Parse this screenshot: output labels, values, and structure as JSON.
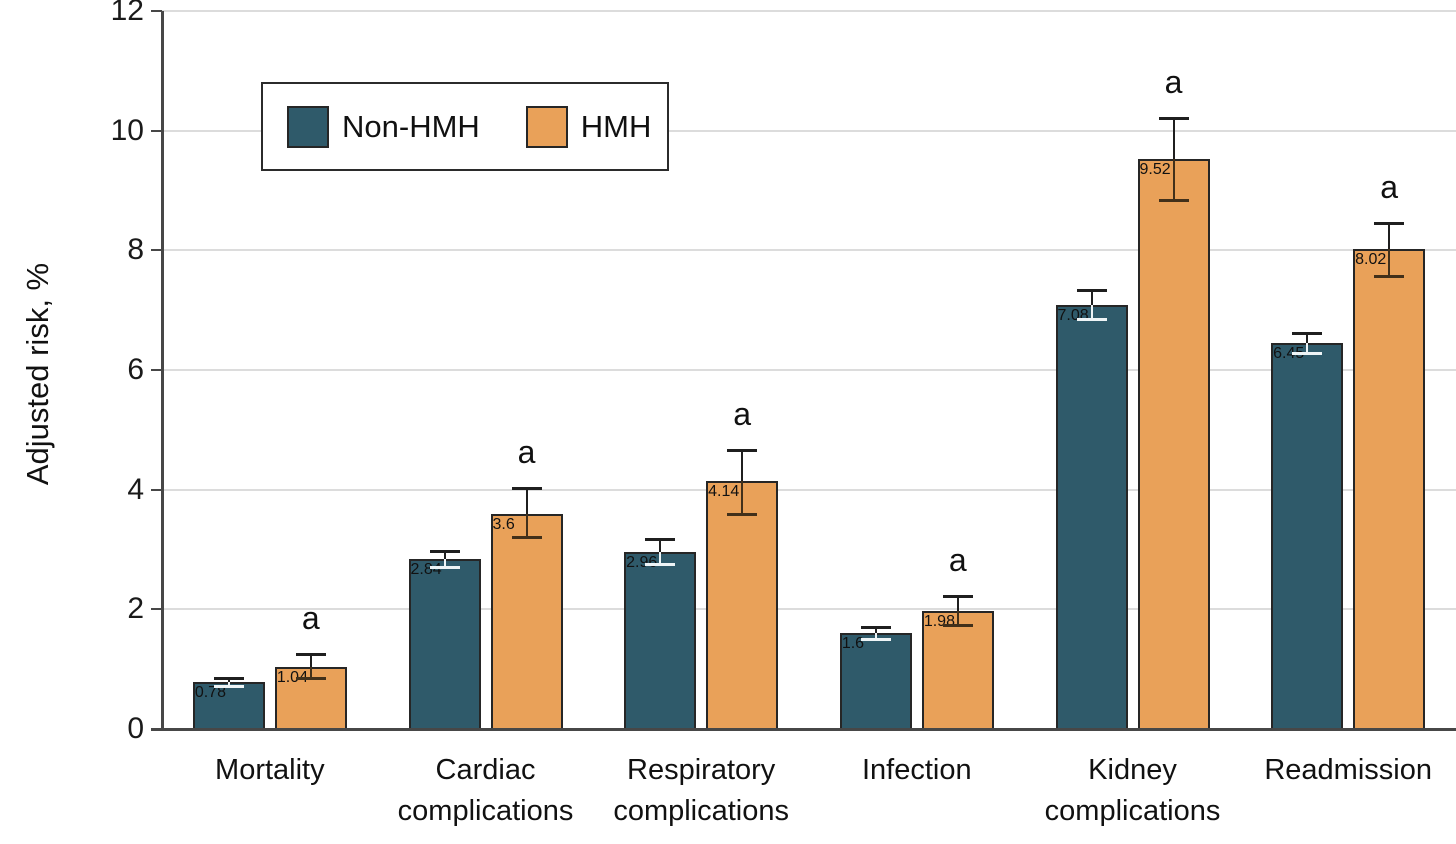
{
  "figure": {
    "background": "#ffffff",
    "axis_color": "#474747",
    "grid_color": "#dcdcdc",
    "bar_outline_color": "#262626",
    "error_bar_color": "#1f1f1f",
    "error_bar_light_color": "#eef4f6",
    "significance_marker": "a"
  },
  "legend": {
    "position": "top-left",
    "items": [
      {
        "label": "Non-HMH",
        "color": "#2f5a6a"
      },
      {
        "label": "HMH",
        "color": "#e9a159"
      }
    ]
  },
  "chart_data": {
    "type": "bar",
    "title": "",
    "xlabel": "",
    "ylabel": "Adjusted risk, %",
    "ylim": [
      0,
      12
    ],
    "yticks": [
      0,
      2,
      4,
      6,
      8,
      10,
      12
    ],
    "grid": true,
    "legend_position": "top-left",
    "categories": [
      "Mortality",
      "Cardiac complications",
      "Respiratory complications",
      "Infection",
      "Kidney complications",
      "Readmission"
    ],
    "series": [
      {
        "name": "Non-HMH",
        "color": "#2f5a6a",
        "values": [
          0.78,
          2.84,
          2.96,
          1.6,
          7.08,
          6.45
        ],
        "ci_low": [
          0.72,
          2.7,
          2.75,
          1.5,
          6.85,
          6.28
        ],
        "ci_high": [
          0.85,
          2.97,
          3.18,
          1.7,
          7.33,
          6.62
        ],
        "annotation": ""
      },
      {
        "name": "HMH",
        "color": "#e9a159",
        "values": [
          1.04,
          3.6,
          4.14,
          1.98,
          9.52,
          8.02
        ],
        "ci_low": [
          0.85,
          3.21,
          3.6,
          1.74,
          8.84,
          7.57
        ],
        "ci_high": [
          1.25,
          4.03,
          4.66,
          2.23,
          10.21,
          8.46
        ],
        "annotation": "a"
      }
    ]
  }
}
